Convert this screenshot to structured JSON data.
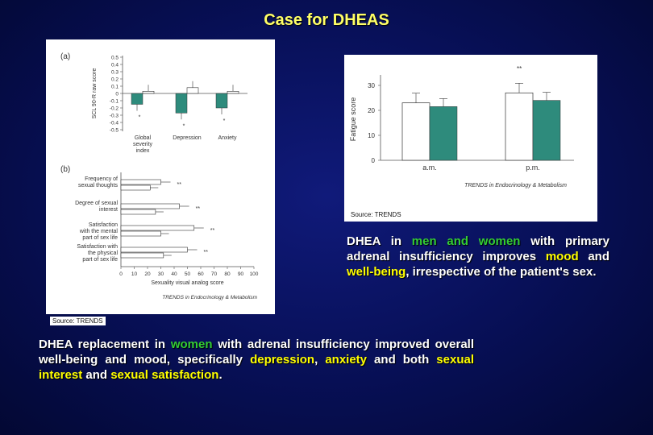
{
  "slide": {
    "title": "Case for DHEAS"
  },
  "colors": {
    "background": "#070f55",
    "title": "#ffff66",
    "green": "#33cc33",
    "yellow": "#ffff00",
    "bar_fill": "#2e8b7c"
  },
  "left_figure": {
    "panel_a": {
      "tag": "(a)",
      "ylabel": "SCL 90-R raw score",
      "yticks": [
        "0.5",
        "0.4",
        "0.3",
        "0.2",
        "0.1",
        "0",
        "-0.1",
        "-0.2",
        "-0.3",
        "-0.4",
        "-0.5"
      ],
      "categories": [
        "Global severity index",
        "Depression",
        "Anxiety"
      ],
      "cat_lines": [
        [
          "Global",
          "severity",
          "index"
        ],
        [
          "Depression"
        ],
        [
          "Anxiety"
        ]
      ],
      "treated": [
        -0.15,
        -0.27,
        -0.2
      ],
      "placebo": [
        0.03,
        0.08,
        0.03
      ],
      "stars": [
        "*",
        "*",
        "*"
      ]
    },
    "panel_b": {
      "tag": "(b)",
      "rows": [
        {
          "label": [
            "Frequency of",
            "sexual thoughts"
          ],
          "a": 30,
          "b": 22,
          "stars": "**"
        },
        {
          "label": [
            "Degree of sexual",
            "interest"
          ],
          "a": 44,
          "b": 26,
          "stars": "**"
        },
        {
          "label": [
            "Satisfaction",
            "with the mental",
            "part of sex life"
          ],
          "a": 55,
          "b": 30,
          "stars": "**"
        },
        {
          "label": [
            "Satisfaction with",
            "the physical",
            "part of sex life"
          ],
          "a": 50,
          "b": 32,
          "stars": "**"
        }
      ],
      "xticks": [
        "0",
        "10",
        "20",
        "30",
        "40",
        "50",
        "60",
        "70",
        "80",
        "90",
        "100"
      ],
      "xlabel": "Sexuality visual analog score"
    },
    "credit": "TRENDS in Endocrinology & Metabolism",
    "source": "Source: TRENDS"
  },
  "right_figure": {
    "ylabel": "Fatigue score",
    "yticks": [
      "0",
      "10",
      "20",
      "30"
    ],
    "groups": [
      {
        "label": "a.m.",
        "placebo": 23,
        "treated": 21.5,
        "stars": ""
      },
      {
        "label": "p.m.",
        "placebo": 27,
        "treated": 24,
        "stars": "**"
      }
    ],
    "credit": "TRENDS in Endocrinology & Metabolism",
    "source": "Source: TRENDS"
  },
  "text_right": {
    "p1": "DHEA in ",
    "p2": "men and women",
    "p3": " with primary adrenal insufficiency improves ",
    "p4": "mood",
    "p5": " and ",
    "p6": "well-being",
    "p7": ", irrespective of the patient's sex."
  },
  "text_bottom": {
    "p1": "DHEA replacement in ",
    "p2": "women",
    "p3": " with adrenal insufficiency improved overall well-being and mood, specifically ",
    "p4": "depression",
    "p5": ", ",
    "p6": "anxiety",
    "p7": " and both ",
    "p8": "sexual interest",
    "p9": " and ",
    "p10": "sexual satisfaction",
    "p11": "."
  }
}
